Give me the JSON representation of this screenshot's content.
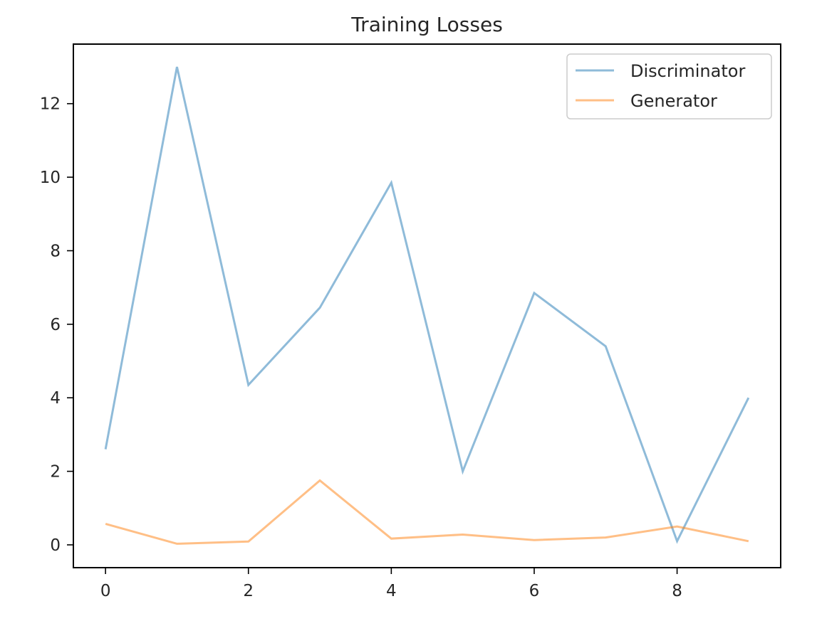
{
  "chart_data": {
    "type": "line",
    "title": "Training Losses",
    "xlabel": "",
    "ylabel": "",
    "x": [
      0,
      1,
      2,
      3,
      4,
      5,
      6,
      7,
      8,
      9
    ],
    "xlim": [
      -0.45,
      9.45
    ],
    "ylim": [
      -0.62,
      13.62
    ],
    "xticks": [
      0,
      2,
      4,
      6,
      8
    ],
    "xtick_labels": [
      "0",
      "2",
      "4",
      "6",
      "8"
    ],
    "yticks": [
      0,
      2,
      4,
      6,
      8,
      10,
      12
    ],
    "ytick_labels": [
      "0",
      "2",
      "4",
      "6",
      "8",
      "10",
      "12"
    ],
    "grid": false,
    "legend_position": "top-right",
    "series": [
      {
        "name": "Discriminator",
        "color": "#1f77b4",
        "values": [
          2.6,
          13.0,
          4.35,
          6.45,
          9.85,
          2.0,
          6.85,
          5.4,
          0.1,
          4.0
        ]
      },
      {
        "name": "Generator",
        "color": "#ff7f0e",
        "values": [
          0.57,
          0.03,
          0.09,
          1.75,
          0.17,
          0.28,
          0.13,
          0.2,
          0.5,
          0.1
        ]
      }
    ]
  }
}
